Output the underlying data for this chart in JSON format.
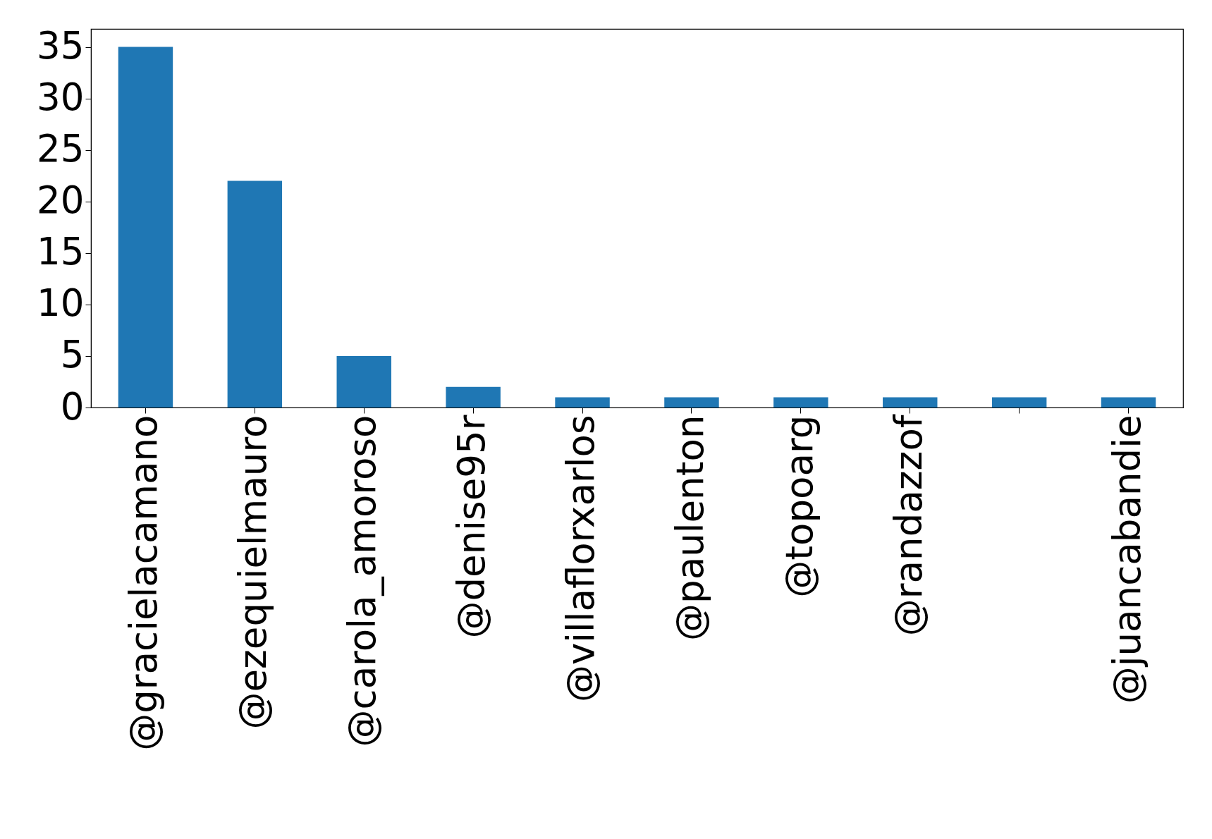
{
  "chart_data": {
    "type": "bar",
    "categories": [
      "@gracielacamano",
      "@ezequielmauro",
      "@carola_amoroso",
      "@denise95r",
      "@villaflorxarlos",
      "@paulenton",
      "@topoarg",
      "@randazzof",
      null,
      "@juancabandie"
    ],
    "values": [
      35,
      22,
      5,
      2,
      1,
      1,
      1,
      1,
      1,
      1
    ],
    "color": "#1f77b4",
    "ylim": [
      0,
      36.75
    ],
    "yticks": [
      0,
      5,
      10,
      15,
      20,
      25,
      30,
      35
    ],
    "grid": false
  }
}
